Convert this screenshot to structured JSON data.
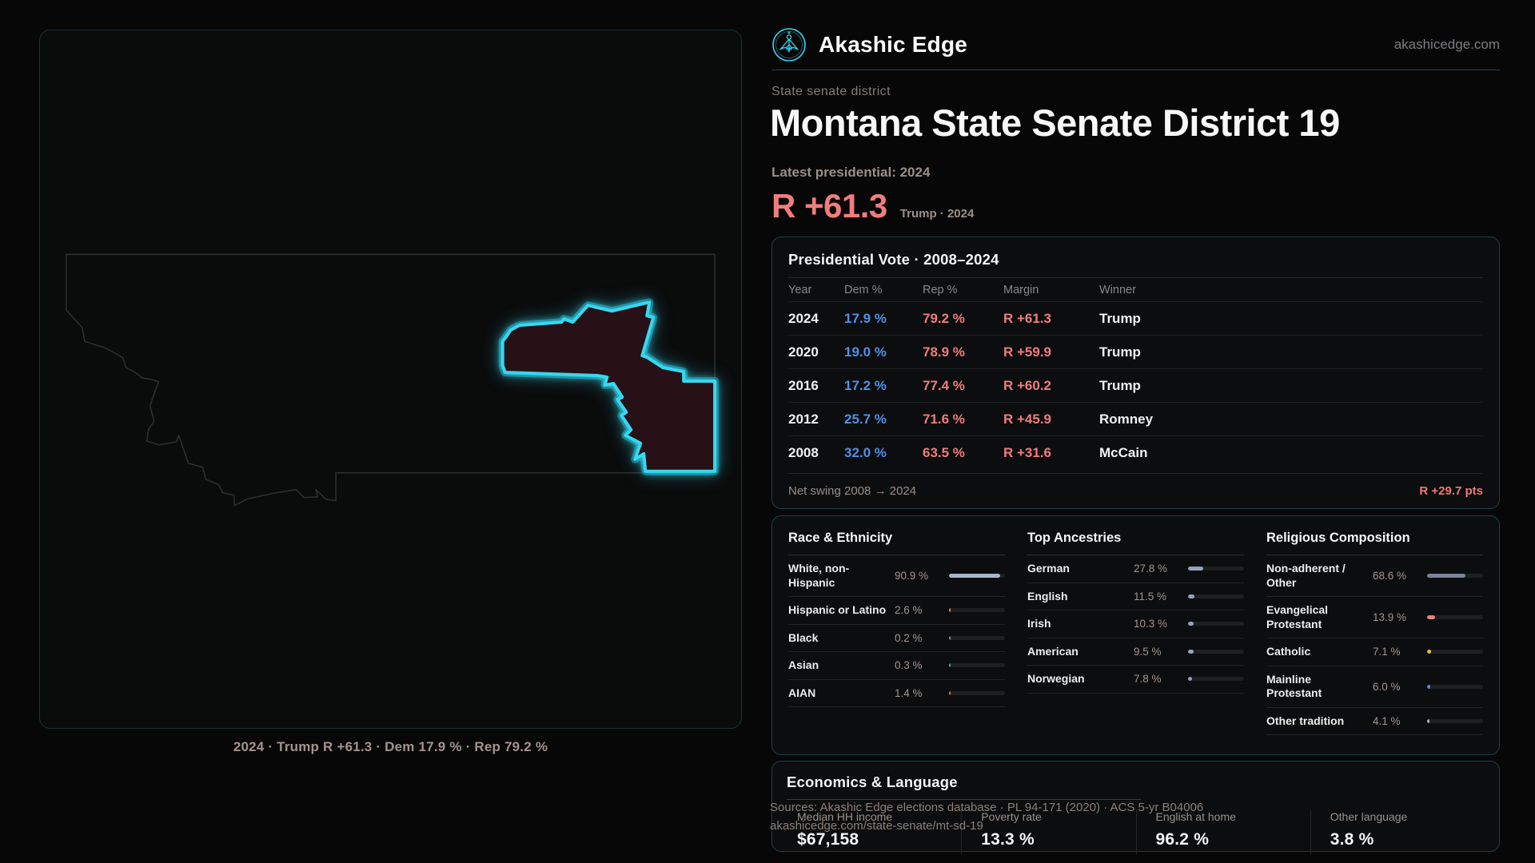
{
  "colors": {
    "accent_cyan": "#38d7f0",
    "rep_red": "#ef7d7d",
    "dem_blue": "#5290e8",
    "page_bg": "#070708",
    "panel_border": "#1c4049",
    "muted_taupe": "#a5938c",
    "muted_gray": "#87878c"
  },
  "header": {
    "brand": "Akashic Edge",
    "domain": "akashicedge.com",
    "logo_icon": "akashic-emblem-icon"
  },
  "hero": {
    "eyebrow": "State senate district",
    "title": "Montana State Senate District 19",
    "latest_label": "Latest presidential: 2024",
    "margin_value": "R +61.3",
    "margin_context": "Trump · 2024"
  },
  "map": {
    "caption": "2024 · Trump R +61.3 · Dem 17.9 % · Rep 79.2 %"
  },
  "presidential_table": {
    "title": "Presidential Vote · 2008–2024",
    "columns": [
      "Year",
      "Dem %",
      "Rep %",
      "Margin",
      "Winner"
    ],
    "rows": [
      {
        "year": "2024",
        "dem": "17.9 %",
        "rep": "79.2 %",
        "margin": "R +61.3",
        "winner": "Trump"
      },
      {
        "year": "2020",
        "dem": "19.0 %",
        "rep": "78.9 %",
        "margin": "R +59.9",
        "winner": "Trump"
      },
      {
        "year": "2016",
        "dem": "17.2 %",
        "rep": "77.4 %",
        "margin": "R +60.2",
        "winner": "Trump"
      },
      {
        "year": "2012",
        "dem": "25.7 %",
        "rep": "71.6 %",
        "margin": "R +45.9",
        "winner": "Romney"
      },
      {
        "year": "2008",
        "dem": "32.0 %",
        "rep": "63.5 %",
        "margin": "R +31.6",
        "winner": "McCain"
      }
    ],
    "footer_label": "Net swing 2008 → 2024",
    "footer_value": "R +29.7 pts"
  },
  "demographics": {
    "race": {
      "title": "Race & Ethnicity",
      "rows": [
        {
          "label": "White, non-Hispanic",
          "value": "90.9 %",
          "pct": 90.9,
          "color": "#a9b6c9"
        },
        {
          "label": "Hispanic or Latino",
          "value": "2.6 %",
          "pct": 2.6,
          "color": "#e09a3e"
        },
        {
          "label": "Black",
          "value": "0.2 %",
          "pct": 0.2,
          "color": "#8e8e93"
        },
        {
          "label": "Asian",
          "value": "0.3 %",
          "pct": 0.3,
          "color": "#45b08c"
        },
        {
          "label": "AIAN",
          "value": "1.4 %",
          "pct": 1.4,
          "color": "#cf7f3a"
        }
      ]
    },
    "ancestries": {
      "title": "Top Ancestries",
      "rows": [
        {
          "label": "German",
          "value": "27.8 %",
          "pct": 27.8,
          "color": "#93a5bb"
        },
        {
          "label": "English",
          "value": "11.5 %",
          "pct": 11.5,
          "color": "#93a5bb"
        },
        {
          "label": "Irish",
          "value": "10.3 %",
          "pct": 10.3,
          "color": "#93a5bb"
        },
        {
          "label": "American",
          "value": "9.5 %",
          "pct": 9.5,
          "color": "#93a5bb"
        },
        {
          "label": "Norwegian",
          "value": "7.8 %",
          "pct": 7.8,
          "color": "#93a5bb"
        }
      ]
    },
    "religion": {
      "title": "Religious Composition",
      "rows": [
        {
          "label": "Non-adherent / Other",
          "value": "68.6 %",
          "pct": 68.6,
          "color": "#7b8499"
        },
        {
          "label": "Evangelical Protestant",
          "value": "13.9 %",
          "pct": 13.9,
          "color": "#e88383"
        },
        {
          "label": "Catholic",
          "value": "7.1 %",
          "pct": 7.1,
          "color": "#e6bb45"
        },
        {
          "label": "Mainline Protestant",
          "value": "6.0 %",
          "pct": 6.0,
          "color": "#5585e0"
        },
        {
          "label": "Other tradition",
          "value": "4.1 %",
          "pct": 4.1,
          "color": "#aab0b8"
        }
      ]
    }
  },
  "economics": {
    "title": "Economics & Language",
    "stats": [
      {
        "label": "Median HH income",
        "value": "$67,158"
      },
      {
        "label": "Poverty rate",
        "value": "13.3 %"
      },
      {
        "label": "English at home",
        "value": "96.2 %"
      },
      {
        "label": "Other language",
        "value": "3.8 %"
      }
    ]
  },
  "sources": {
    "line1": "Sources: Akashic Edge elections database · PL 94-171 (2020) · ACS 5-yr B04006",
    "line2": "akashicedge.com/state-senate/mt-sd-19"
  }
}
